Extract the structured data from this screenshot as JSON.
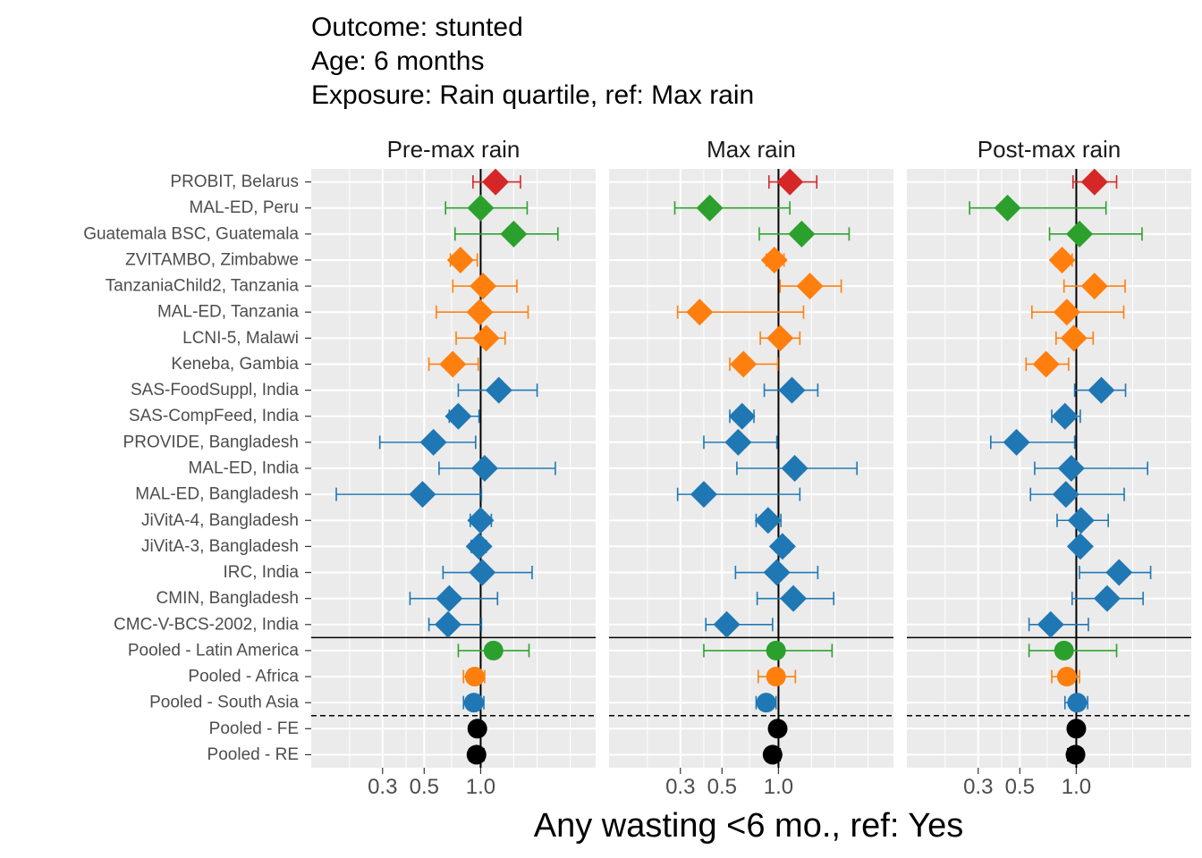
{
  "chart_data": {
    "type": "forest",
    "title_lines": [
      "Outcome: stunted",
      "Age: 6 months",
      "Exposure: Rain quartile, ref: Max rain"
    ],
    "xlabel": "Any wasting  <6 mo., ref: Yes",
    "x_scale": "log",
    "xlim": [
      0.125,
      4.1
    ],
    "x_ticks": [
      {
        "value": 0.3,
        "label": "0.3"
      },
      {
        "value": 0.5,
        "label": "0.5"
      },
      {
        "value": 1.0,
        "label": "1.0"
      }
    ],
    "reference_line": 1.0,
    "grid": true,
    "panels": [
      "Pre-max rain",
      "Max rain",
      "Post-max rain"
    ],
    "studies": [
      "PROBIT, Belarus",
      "MAL-ED, Peru",
      "Guatemala BSC, Guatemala",
      "ZVITAMBO, Zimbabwe",
      "TanzaniaChild2, Tanzania",
      "MAL-ED, Tanzania",
      "LCNI-5, Malawi",
      "Keneba, Gambia",
      "SAS-FoodSuppl, India",
      "SAS-CompFeed, India",
      "PROVIDE, Bangladesh",
      "MAL-ED, India",
      "MAL-ED, Bangladesh",
      "JiVitA-4, Bangladesh",
      "JiVitA-3, Bangladesh",
      "IRC, India",
      "CMIN, Bangladesh",
      "CMC-V-BCS-2002, India",
      "Pooled - Latin America",
      "Pooled - Africa",
      "Pooled - South Asia",
      "Pooled - FE",
      "Pooled - RE"
    ],
    "pooled_region_start": 18,
    "pooled_overall_start": 21,
    "region_of_study": [
      "Europe",
      "Latin America",
      "Latin America",
      "Africa",
      "Africa",
      "Africa",
      "Africa",
      "Africa",
      "South Asia",
      "South Asia",
      "South Asia",
      "South Asia",
      "South Asia",
      "South Asia",
      "South Asia",
      "South Asia",
      "South Asia",
      "South Asia",
      "Latin America",
      "Africa",
      "South Asia",
      "Overall",
      "Overall"
    ],
    "region_colors": {
      "Europe": "#D62728",
      "Latin America": "#2CA02C",
      "Africa": "#FF7F0E",
      "South Asia": "#1F77B4",
      "Overall": "#000000"
    },
    "series": [
      {
        "panel": "Pre-max rain",
        "est": [
          1.2,
          1.0,
          1.5,
          0.78,
          1.03,
          0.99,
          1.07,
          0.71,
          1.25,
          0.76,
          0.56,
          1.05,
          0.49,
          1.0,
          0.98,
          1.02,
          0.68,
          0.67,
          1.17,
          0.93,
          0.92,
          0.96,
          0.95
        ],
        "lower": [
          0.91,
          0.65,
          0.73,
          0.69,
          0.71,
          0.58,
          0.74,
          0.53,
          0.76,
          0.68,
          0.29,
          0.6,
          0.17,
          0.88,
          0.89,
          0.63,
          0.42,
          0.53,
          0.76,
          0.81,
          0.81,
          0.91,
          0.87
        ],
        "upper": [
          1.63,
          1.77,
          2.58,
          0.96,
          1.56,
          1.79,
          1.35,
          0.97,
          2.0,
          0.98,
          0.94,
          2.5,
          1.01,
          1.14,
          1.07,
          1.88,
          1.23,
          1.01,
          1.81,
          1.05,
          1.04,
          1.01,
          1.04
        ]
      },
      {
        "panel": "Max rain",
        "est": [
          1.15,
          0.43,
          1.33,
          0.95,
          1.47,
          0.38,
          1.02,
          0.65,
          1.18,
          0.64,
          0.61,
          1.22,
          0.4,
          0.88,
          1.05,
          0.98,
          1.2,
          0.53,
          0.97,
          0.97,
          0.86,
          0.99,
          0.93
        ],
        "lower": [
          0.89,
          0.28,
          0.79,
          0.86,
          1.02,
          0.29,
          0.8,
          0.55,
          0.84,
          0.55,
          0.4,
          0.6,
          0.29,
          0.76,
          0.97,
          0.59,
          0.77,
          0.41,
          0.4,
          0.78,
          0.76,
          0.95,
          0.86
        ],
        "upper": [
          1.6,
          1.15,
          2.38,
          1.07,
          2.16,
          1.36,
          1.3,
          0.99,
          1.62,
          0.74,
          0.98,
          2.62,
          1.3,
          1.03,
          1.14,
          1.62,
          1.97,
          0.93,
          1.93,
          1.23,
          0.97,
          1.04,
          1.02
        ]
      },
      {
        "panel": "Post-max rain",
        "est": [
          1.25,
          0.43,
          1.04,
          0.84,
          1.25,
          0.89,
          0.97,
          0.69,
          1.36,
          0.87,
          0.48,
          0.94,
          0.88,
          1.06,
          1.05,
          1.69,
          1.46,
          0.73,
          0.86,
          0.89,
          1.01,
          1.0,
          0.99
        ],
        "lower": [
          0.96,
          0.27,
          0.72,
          0.77,
          0.86,
          0.58,
          0.78,
          0.54,
          0.98,
          0.74,
          0.35,
          0.6,
          0.57,
          0.79,
          0.99,
          1.04,
          0.95,
          0.56,
          0.56,
          0.74,
          0.87,
          0.94,
          0.9
        ],
        "upper": [
          1.64,
          1.44,
          2.24,
          0.95,
          1.82,
          1.79,
          1.23,
          0.91,
          1.83,
          1.05,
          0.98,
          2.4,
          1.8,
          1.48,
          1.13,
          2.49,
          2.27,
          1.16,
          1.64,
          1.04,
          1.15,
          1.06,
          1.08
        ]
      }
    ]
  }
}
